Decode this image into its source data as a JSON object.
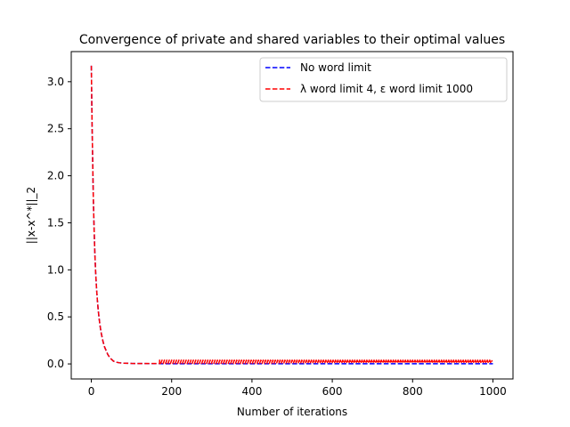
{
  "chart_data": {
    "type": "line",
    "title": "Convergence of private and shared variables to their optimal values",
    "xlabel": "Number of iterations",
    "ylabel": "||x-x^*||_2",
    "xlim": [
      -50,
      1050
    ],
    "ylim": [
      -0.16,
      3.32
    ],
    "xticks": [
      0,
      200,
      400,
      600,
      800,
      1000
    ],
    "yticks": [
      0.0,
      0.5,
      1.0,
      1.5,
      2.0,
      2.5,
      3.0
    ],
    "xtick_labels": [
      "0",
      "200",
      "400",
      "600",
      "800",
      "1000"
    ],
    "ytick_labels": [
      "0.0",
      "0.5",
      "1.0",
      "1.5",
      "2.0",
      "2.5",
      "3.0"
    ],
    "grid": false,
    "legend_position": "top-right",
    "series": [
      {
        "name": "No word limit",
        "color": "#0000ff",
        "style": "dashed",
        "x": [
          0,
          1,
          2,
          3,
          4,
          5,
          7,
          9,
          11,
          13,
          15,
          17,
          19,
          21,
          23,
          25,
          27,
          29,
          31,
          33,
          35,
          38,
          41,
          44,
          47,
          50,
          55,
          60,
          70,
          80,
          100,
          150,
          200,
          250,
          300,
          350,
          400,
          450,
          500,
          550,
          600,
          650,
          700,
          750,
          800,
          850,
          900,
          950,
          1000
        ],
        "y": [
          3.17,
          2.8,
          2.5,
          2.25,
          2.0,
          1.75,
          1.42,
          1.15,
          0.95,
          0.8,
          0.68,
          0.58,
          0.5,
          0.43,
          0.37,
          0.32,
          0.28,
          0.24,
          0.21,
          0.18,
          0.16,
          0.13,
          0.1,
          0.08,
          0.06,
          0.05,
          0.03,
          0.02,
          0.012,
          0.008,
          0.005,
          0.003,
          0.002,
          0.002,
          0.002,
          0.002,
          0.002,
          0.002,
          0.002,
          0.002,
          0.002,
          0.002,
          0.002,
          0.002,
          0.002,
          0.002,
          0.002,
          0.002,
          0.002
        ]
      },
      {
        "name": "λ word limit 4, ε word limit 1000",
        "color": "#ff0000",
        "style": "dashed",
        "oscillation": {
          "start": 170,
          "end": 1000,
          "low": 0.005,
          "high": 0.04,
          "period": 6
        },
        "x": [
          0,
          1,
          2,
          3,
          4,
          5,
          7,
          9,
          11,
          13,
          15,
          17,
          19,
          21,
          23,
          25,
          27,
          29,
          31,
          33,
          35,
          38,
          41,
          44,
          47,
          50,
          55,
          60,
          70,
          80,
          100,
          130,
          160,
          170
        ],
        "y": [
          3.17,
          2.8,
          2.5,
          2.25,
          2.0,
          1.75,
          1.42,
          1.15,
          0.95,
          0.8,
          0.68,
          0.58,
          0.5,
          0.43,
          0.37,
          0.32,
          0.28,
          0.24,
          0.21,
          0.18,
          0.16,
          0.13,
          0.1,
          0.08,
          0.06,
          0.05,
          0.03,
          0.02,
          0.012,
          0.008,
          0.005,
          0.004,
          0.004,
          0.004
        ]
      }
    ]
  }
}
